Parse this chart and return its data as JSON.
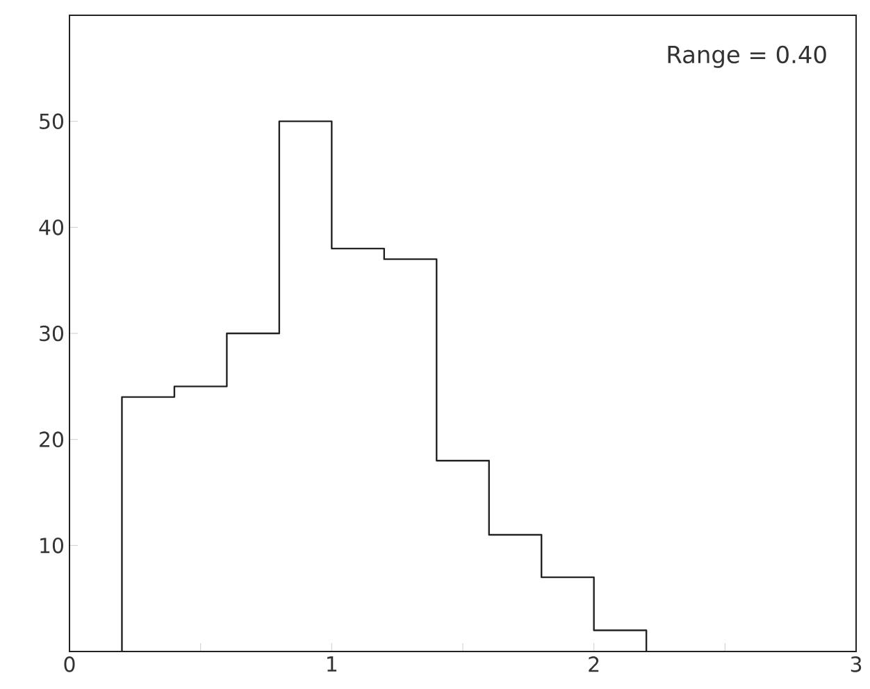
{
  "chart_data": {
    "type": "histogram",
    "bins": [
      0.2,
      0.4,
      0.6,
      0.8,
      1.0,
      1.2,
      1.4,
      1.6,
      1.8,
      2.0,
      2.2
    ],
    "values": [
      24,
      25,
      30,
      50,
      38,
      37,
      18,
      11,
      7,
      2
    ],
    "color": "#222222",
    "xlim": [
      0,
      3
    ],
    "ylim": [
      0,
      60
    ],
    "xticks": [
      0,
      {
        "value": 0.5,
        "label": null
      },
      1,
      {
        "value": 1.5,
        "label": null
      },
      2,
      {
        "value": 2.5,
        "label": null
      },
      3
    ],
    "yticks": [
      10,
      20,
      30,
      40,
      50
    ],
    "annotations": [
      "Range = 0.40"
    ],
    "grid": false
  }
}
